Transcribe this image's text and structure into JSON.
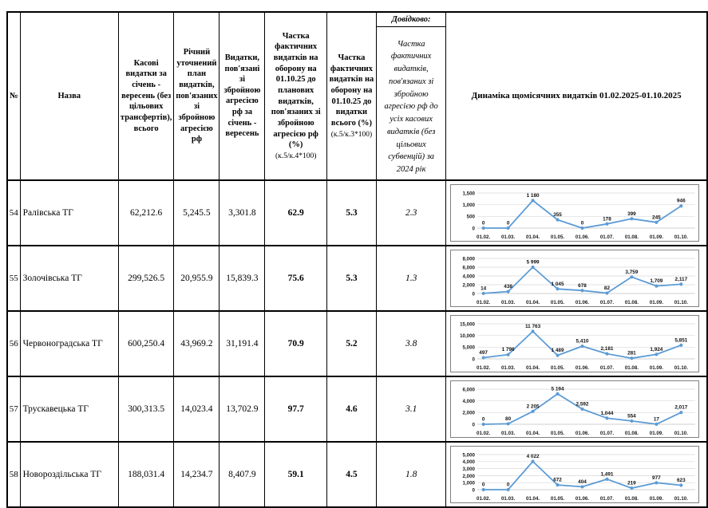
{
  "table": {
    "headers": {
      "num": "№",
      "name": "Назва",
      "cash": "Касові видатки за січень - вересень (без цільових трансфертів), всього",
      "plan": "Річний уточнений план видатків, пов'язаних зі збройною агресією рф",
      "war_exp": "Видатки, пов'язані зі збройною агресією рф за січень - вересень",
      "share_plan": "Частка фактичних видатків на оборону на 01.10.25 до планових видатків, пов'язаних зі збройною агресією рф (%)",
      "share_plan_formula": "(к.5/к.4*100)",
      "share_total": "Частка фактичних видатків на оборону на 01.10.25 до видатки всього (%)",
      "share_total_formula": "(к.5/к.3*100)",
      "ref_title": "Довідково:",
      "ref_body": "Частка фактичних видатків, пов'язаних зі збройною агресією рф до усіх касових видатків (без цільових субвенцій) за 2024 рік",
      "dynamics": "Динаміка щомісячних видатків 01.02.2025-01.10.2025"
    },
    "rows": [
      {
        "num": "54",
        "name": "Ралівська ТГ",
        "cash": "62,212.6",
        "plan": "5,245.5",
        "war_exp": "3,301.8",
        "share_plan": "62.9",
        "share_total": "5.3",
        "ref_2024": "2.3"
      },
      {
        "num": "55",
        "name": "Золочівська ТГ",
        "cash": "299,526.5",
        "plan": "20,955.9",
        "war_exp": "15,839.3",
        "share_plan": "75.6",
        "share_total": "5.3",
        "ref_2024": "1.3"
      },
      {
        "num": "56",
        "name": "Червоноградська ТГ",
        "cash": "600,250.4",
        "plan": "43,969.2",
        "war_exp": "31,191.4",
        "share_plan": "70.9",
        "share_total": "5.2",
        "ref_2024": "3.8"
      },
      {
        "num": "57",
        "name": "Трускавецька ТГ",
        "cash": "300,313.5",
        "plan": "14,023.4",
        "war_exp": "13,702.9",
        "share_plan": "97.7",
        "share_total": "4.6",
        "ref_2024": "3.1"
      },
      {
        "num": "58",
        "name": "Новороздільська ТГ",
        "cash": "188,031.4",
        "plan": "14,234.7",
        "war_exp": "8,407.9",
        "share_plan": "59.1",
        "share_total": "4.5",
        "ref_2024": "1.8"
      }
    ]
  },
  "chart_categories": [
    "01.02.",
    "01.03.",
    "01.04.",
    "01.05.",
    "01.06.",
    "01.07.",
    "01.08.",
    "01.09.",
    "01.10."
  ],
  "chart_style": {
    "line_color": "#5B9BD5",
    "grid_color": "#d9d9d9",
    "axis_color": "#bfbfbf"
  },
  "chart_data": [
    {
      "type": "line",
      "title": "Ралівська ТГ",
      "values": [
        0,
        0,
        1180,
        355,
        0,
        178,
        399,
        245,
        946
      ],
      "labels": [
        "0",
        "0",
        "1 180",
        "355",
        "0",
        "178",
        "399",
        "245",
        "946"
      ],
      "y_ticks": [
        "1,500",
        "1,000",
        "500",
        "0"
      ],
      "ylim": [
        0,
        1500
      ]
    },
    {
      "type": "line",
      "title": "Золочівська ТГ",
      "values": [
        14,
        438,
        5999,
        1045,
        678,
        82,
        3759,
        1709,
        2117
      ],
      "labels": [
        "14",
        "438",
        "5 999",
        "1 045",
        "678",
        "82",
        "3,759",
        "1,709",
        "2,117"
      ],
      "y_ticks": [
        "8,000",
        "6,000",
        "4,000",
        "2,000",
        "0"
      ],
      "ylim": [
        0,
        8000
      ]
    },
    {
      "type": "line",
      "title": "Червоноградська ТГ",
      "values": [
        497,
        1796,
        11763,
        1489,
        5410,
        2181,
        281,
        1924,
        5851
      ],
      "labels": [
        "497",
        "1 796",
        "11 763",
        "1 489",
        "5,410",
        "2,181",
        "281",
        "1,924",
        "5,851"
      ],
      "y_ticks": [
        "15,000",
        "10,000",
        "5,000",
        "0"
      ],
      "ylim": [
        0,
        15000
      ]
    },
    {
      "type": "line",
      "title": "Трускавецька ТГ",
      "values": [
        0,
        80,
        2205,
        5194,
        2592,
        1044,
        554,
        17,
        2017
      ],
      "labels": [
        "0",
        "80",
        "2 205",
        "5 194",
        "2,592",
        "1,044",
        "554",
        "17",
        "2,017"
      ],
      "y_ticks": [
        "6,000",
        "4,000",
        "2,000",
        "0"
      ],
      "ylim": [
        0,
        6000
      ]
    },
    {
      "type": "line",
      "title": "Новороздільська ТГ",
      "values": [
        0,
        0,
        4022,
        672,
        404,
        1491,
        219,
        977,
        623
      ],
      "labels": [
        "0",
        "0",
        "4 022",
        "672",
        "404",
        "1,491",
        "219",
        "977",
        "623"
      ],
      "y_ticks": [
        "5,000",
        "4,000",
        "3,000",
        "2,000",
        "1,000",
        "0"
      ],
      "ylim": [
        0,
        5000
      ]
    }
  ]
}
